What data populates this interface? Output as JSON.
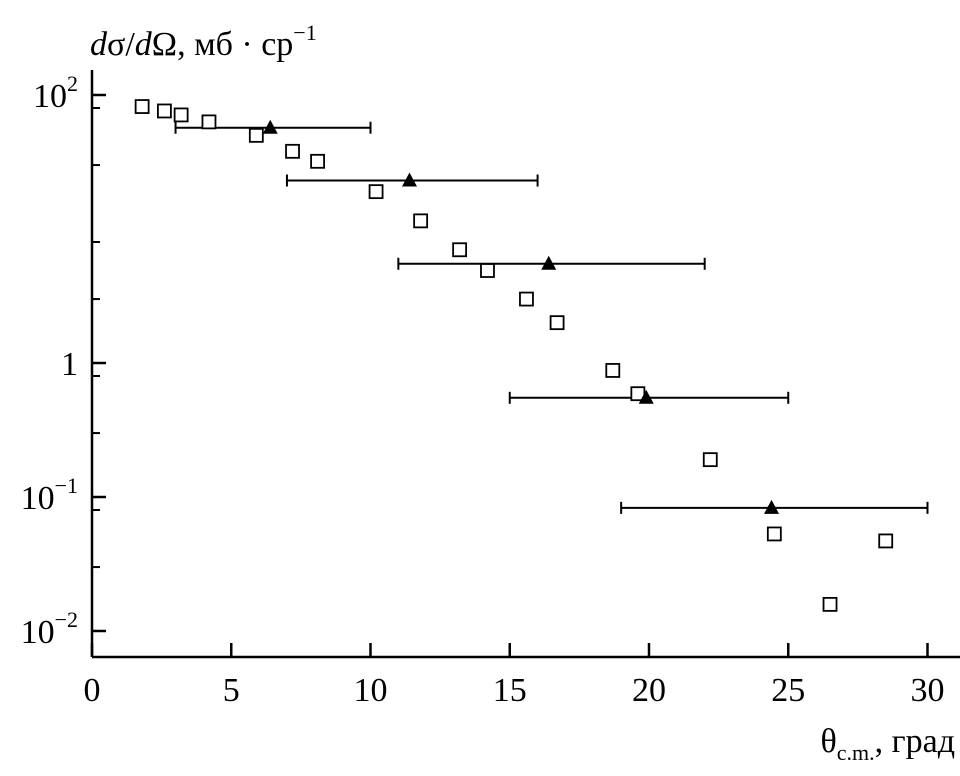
{
  "chart_data": {
    "type": "scatter",
    "xscale": "linear",
    "yscale": "log",
    "xlim": [
      0,
      31
    ],
    "ylim": [
      0.007,
      150
    ],
    "x_ticks": [
      0,
      5,
      10,
      15,
      20,
      25,
      30
    ],
    "x_tick_labels": [
      "0",
      "5",
      "10",
      "15",
      "20",
      "25",
      "30"
    ],
    "y_major_ticks": [
      {
        "value": 100,
        "base": "10",
        "exp": "2"
      },
      {
        "value": 1,
        "base": "1",
        "exp": ""
      },
      {
        "value": 0.1,
        "base": "10",
        "exp": "−1"
      },
      {
        "value": 0.01,
        "base": "10",
        "exp": "−2"
      }
    ],
    "y_minor_ticks": [
      80,
      30,
      8,
      3,
      0.8,
      0.3,
      0.08,
      0.03
    ],
    "ylabel": {
      "d1": "d",
      "sigma": "σ/",
      "d2": "d",
      "omega": "Ω",
      "units": ", мб · ср",
      "exp": "−1"
    },
    "xlabel": {
      "theta": "θ",
      "sub": "c.m.",
      "units": ", град"
    },
    "series": [
      {
        "marker": "open-square",
        "points": [
          {
            "x": 1.8,
            "y": 82
          },
          {
            "x": 2.6,
            "y": 76
          },
          {
            "x": 3.2,
            "y": 71
          },
          {
            "x": 4.2,
            "y": 63
          },
          {
            "x": 5.9,
            "y": 50
          },
          {
            "x": 7.2,
            "y": 38
          },
          {
            "x": 8.1,
            "y": 32
          },
          {
            "x": 10.2,
            "y": 19
          },
          {
            "x": 11.8,
            "y": 11.5
          },
          {
            "x": 13.2,
            "y": 7.0
          },
          {
            "x": 14.2,
            "y": 4.9
          },
          {
            "x": 15.6,
            "y": 3.0
          },
          {
            "x": 16.7,
            "y": 2.0
          },
          {
            "x": 18.7,
            "y": 0.88
          },
          {
            "x": 19.6,
            "y": 0.59
          },
          {
            "x": 22.2,
            "y": 0.19
          },
          {
            "x": 24.5,
            "y": 0.053
          },
          {
            "x": 26.5,
            "y": 0.0158
          },
          {
            "x": 28.5,
            "y": 0.047
          }
        ]
      },
      {
        "marker": "filled-triangle",
        "points": [
          {
            "x": 6.4,
            "y": 57,
            "xmin": 3,
            "xmax": 10
          },
          {
            "x": 11.4,
            "y": 23,
            "xmin": 7,
            "xmax": 16
          },
          {
            "x": 16.4,
            "y": 5.5,
            "xmin": 11,
            "xmax": 22
          },
          {
            "x": 19.9,
            "y": 0.55,
            "xmin": 15,
            "xmax": 25
          },
          {
            "x": 24.4,
            "y": 0.083,
            "xmin": 19,
            "xmax": 30
          }
        ]
      }
    ]
  }
}
